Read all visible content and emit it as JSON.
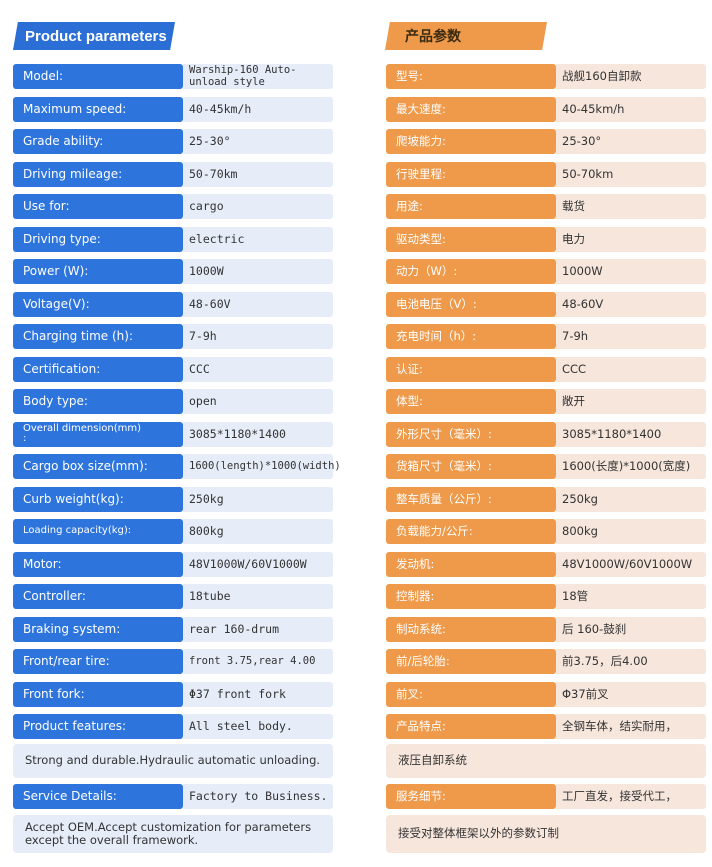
{
  "header": {
    "en_title": "Product parameters",
    "cn_title": "产品参数"
  },
  "en_rows": [
    {
      "label": "Model:",
      "value": "Warship-160 Auto-unload style"
    },
    {
      "label": "Maximum speed:",
      "value": "40-45km/h"
    },
    {
      "label": "Grade ability:",
      "value": "25-30°"
    },
    {
      "label": "Driving mileage:",
      "value": "50-70km"
    },
    {
      "label": "Use for:",
      "value": "cargo"
    },
    {
      "label": "Driving type:",
      "value": "electric"
    },
    {
      "label": "Power (W):",
      "value": "1000W"
    },
    {
      "label": "Voltage(V):",
      "value": "48-60V"
    },
    {
      "label": "Charging time (h):",
      "value": "7-9h"
    },
    {
      "label": "Certification:",
      "value": "CCC"
    },
    {
      "label": "Body type:",
      "value": "open"
    },
    {
      "label": "Overall dimension(mm)\n:",
      "value": "3085*1180*1400"
    },
    {
      "label": "Cargo box size(mm):",
      "value": "1600(length)*1000(width)"
    },
    {
      "label": "Curb weight(kg):",
      "value": "250kg"
    },
    {
      "label": "Loading capacity(kg):",
      "value": "800kg"
    },
    {
      "label": "Motor:",
      "value": "48V1000W/60V1000W"
    },
    {
      "label": "Controller:",
      "value": "18tube"
    },
    {
      "label": "Braking system:",
      "value": "rear 160-drum"
    },
    {
      "label": "Front/rear tire:",
      "value": "front 3.75,rear 4.00"
    },
    {
      "label": "Front fork:",
      "value": "Φ37 front fork"
    },
    {
      "label": "Product features:",
      "value": "All steel body."
    }
  ],
  "en_features_cont": "Strong and durable.Hydraulic automatic unloading.",
  "en_service": {
    "label": "Service Details:",
    "value": "Factory to Business."
  },
  "en_service_cont": "Accept OEM.Accept customization for parameters except the overall framework.",
  "cn_rows": [
    {
      "label": "型号:",
      "value": "战舰160自卸款"
    },
    {
      "label": "最大速度:",
      "value": "40-45km/h"
    },
    {
      "label": "爬坡能力:",
      "value": "25-30°"
    },
    {
      "label": "行驶里程:",
      "value": "50-70km"
    },
    {
      "label": "用途:",
      "value": "载货"
    },
    {
      "label": "驱动类型:",
      "value": "电力"
    },
    {
      "label": "动力（W）:",
      "value": "1000W"
    },
    {
      "label": "电池电压（V）:",
      "value": "48-60V"
    },
    {
      "label": "充电时间（h）:",
      "value": "7-9h"
    },
    {
      "label": "认证:",
      "value": "CCC"
    },
    {
      "label": "体型:",
      "value": "敞开"
    },
    {
      "label": "外形尺寸（毫米）:",
      "value": "3085*1180*1400"
    },
    {
      "label": "货箱尺寸（毫米）:",
      "value": "1600(长度)*1000(宽度)"
    },
    {
      "label": "整车质量（公斤）:",
      "value": "250kg"
    },
    {
      "label": "负载能力/公斤:",
      "value": "800kg"
    },
    {
      "label": "发动机:",
      "value": "48V1000W/60V1000W"
    },
    {
      "label": "控制器:",
      "value": "18管"
    },
    {
      "label": "制动系统:",
      "value": "后 160-鼓刹"
    },
    {
      "label": "前/后轮胎:",
      "value": "前3.75，后4.00"
    },
    {
      "label": "前叉:",
      "value": "Φ37前叉"
    },
    {
      "label": "产品特点:",
      "value": "全钢车体，结实耐用，"
    }
  ],
  "cn_features_cont": "液压自卸系统",
  "cn_service": {
    "label": "服务细节:",
    "value": "工厂直发，接受代工，"
  },
  "cn_service_cont": "接受对整体框架以外的参数订制",
  "colors": {
    "en_label": "#2d74dc",
    "en_value": "#e6ecf8",
    "cn_label": "#ef9a4a",
    "cn_value": "#f6e6dc"
  }
}
